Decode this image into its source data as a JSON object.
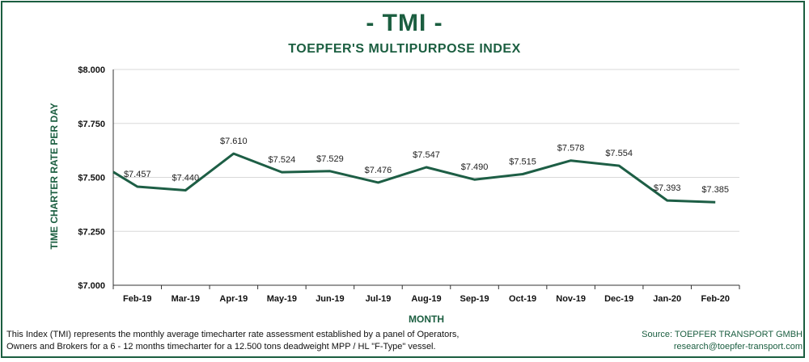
{
  "header": {
    "title": "- TMI -",
    "subtitle": "TOEPFER'S MULTIPURPOSE INDEX"
  },
  "footer": {
    "note_line1": "This Index (TMI) represents the monthly average timecharter rate assessment established by a panel of Operators,",
    "note_line2": "Owners and Brokers for a 6 - 12 months timecharter for a 12.500 tons deadweight MPP / HL \"F-Type\" vessel.",
    "source_line1": "Source: TOEPFER TRANSPORT GMBH",
    "source_line2": "research@toepfer-transport.com"
  },
  "colors": {
    "brand": "#1b5e40",
    "line": "#1d5e45",
    "grid": "#d9d9d9"
  },
  "chart_data": {
    "type": "line",
    "title": "- TMI -",
    "subtitle": "TOEPFER'S MULTIPURPOSE INDEX",
    "xlabel": "MONTH",
    "ylabel": "TIME CHARTER RATE PER DAY",
    "categories": [
      "Feb-19",
      "Mar-19",
      "Apr-19",
      "May-19",
      "Jun-19",
      "Jul-19",
      "Aug-19",
      "Sep-19",
      "Oct-19",
      "Nov-19",
      "Dec-19",
      "Jan-20",
      "Feb-20"
    ],
    "start_value": 7.525,
    "values": [
      7.457,
      7.44,
      7.61,
      7.524,
      7.529,
      7.476,
      7.547,
      7.49,
      7.515,
      7.578,
      7.554,
      7.393,
      7.385
    ],
    "data_labels": [
      "$7.457",
      "$7.440",
      "$7.610",
      "$7.524",
      "$7.529",
      "$7.476",
      "$7.547",
      "$7.490",
      "$7.515",
      "$7.578",
      "$7.554",
      "$7.393",
      "$7.385"
    ],
    "yticks": [
      7.0,
      7.25,
      7.5,
      7.75,
      8.0
    ],
    "ytick_labels": [
      "$7.000",
      "$7.250",
      "$7.500",
      "$7.750",
      "$8.000"
    ],
    "ylim": [
      7.0,
      8.0
    ],
    "grid": true,
    "legend": "none"
  }
}
